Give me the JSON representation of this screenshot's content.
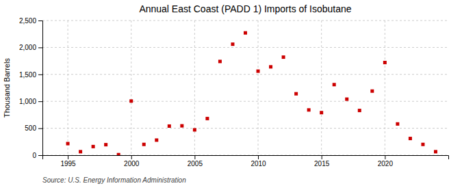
{
  "chart_data": {
    "type": "scatter",
    "title": "Annual East Coast (PADD 1) Imports of Isobutane",
    "y_label": "Thousand Barrels",
    "annotations": [
      "Source: U.S. Energy Information Administration"
    ],
    "x": [
      1995,
      1996,
      1997,
      1998,
      1999,
      2000,
      2001,
      2002,
      2003,
      2004,
      2005,
      2006,
      2007,
      2008,
      2009,
      2010,
      2011,
      2012,
      2013,
      2014,
      2015,
      2016,
      2017,
      2018,
      2019,
      2020,
      2021,
      2022,
      2023,
      2024
    ],
    "values": [
      215,
      65,
      160,
      195,
      10,
      1005,
      200,
      280,
      540,
      545,
      470,
      680,
      1740,
      2060,
      2270,
      1560,
      1640,
      1820,
      1140,
      840,
      790,
      1310,
      1040,
      830,
      1190,
      1720,
      580,
      310,
      200,
      65
    ],
    "color": "#cc0000",
    "marker": "square",
    "xlim": [
      1993,
      2025
    ],
    "ylim": [
      0,
      2500
    ],
    "xticks": [
      1995,
      2000,
      2005,
      2010,
      2015,
      2020
    ],
    "yticks": [
      0,
      500,
      {
        "value": 1000,
        "label": "1,000"
      },
      {
        "value": 1500,
        "label": "1,500"
      },
      {
        "value": 2000,
        "label": "2,000"
      },
      {
        "value": 2500,
        "label": "2,500"
      }
    ],
    "grid": true
  }
}
